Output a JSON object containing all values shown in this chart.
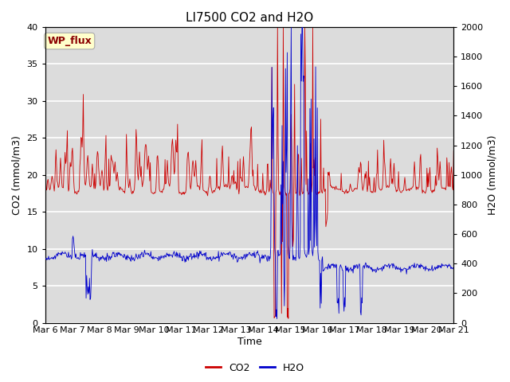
{
  "title": "LI7500 CO2 and H2O",
  "xlabel": "Time",
  "ylabel_left": "CO2 (mmol/m3)",
  "ylabel_right": "H2O (mmol/m3)",
  "annotation": "WP_flux",
  "annotation_color": "#8B0000",
  "annotation_bg": "#FFFFCC",
  "annotation_edge": "#AAAAAA",
  "ylim_left": [
    0,
    40
  ],
  "ylim_right": [
    0,
    2000
  ],
  "xtick_labels": [
    "Mar 6",
    "Mar 7",
    "Mar 8",
    "Mar 9",
    "Mar 10",
    "Mar 11",
    "Mar 12",
    "Mar 13",
    "Mar 14",
    "Mar 15",
    "Mar 16",
    "Mar 17",
    "Mar 18",
    "Mar 19",
    "Mar 20",
    "Mar 21"
  ],
  "yticks_left": [
    0,
    5,
    10,
    15,
    20,
    25,
    30,
    35,
    40
  ],
  "yticks_right": [
    0,
    200,
    400,
    600,
    800,
    1000,
    1200,
    1400,
    1600,
    1800,
    2000
  ],
  "co2_color": "#CC0000",
  "h2o_color": "#0000CC",
  "background_color": "#DCDCDC",
  "grid_color": "#FFFFFF",
  "legend_co2": "CO2",
  "legend_h2o": "H2O",
  "title_fontsize": 11,
  "axis_fontsize": 9,
  "tick_fontsize": 8
}
